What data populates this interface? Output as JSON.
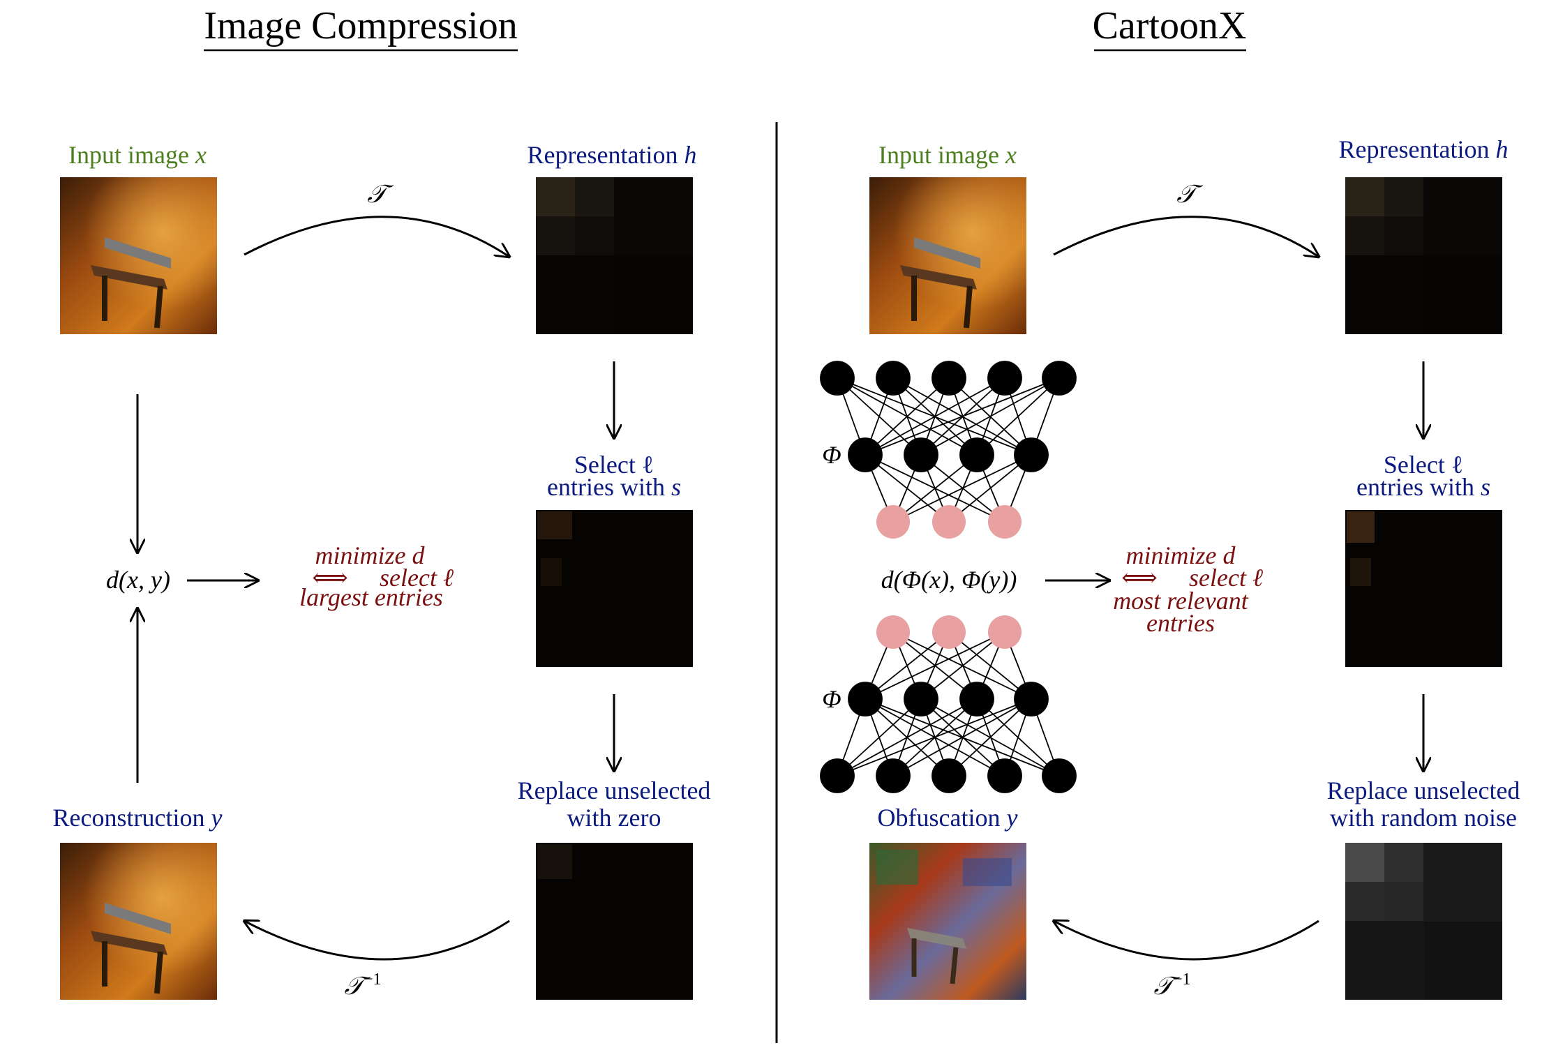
{
  "left_panel": {
    "title": "Image Compression",
    "input_label": "Input image",
    "input_var": "x",
    "representation_label": "Representation",
    "representation_var": "h",
    "transform": "𝒯",
    "inverse_transform": "𝒯",
    "inverse_sup": "−1",
    "select_line1": "Select ℓ",
    "select_line2": "entries with",
    "select_var": "s",
    "replace_line1": "Replace unselected",
    "replace_line2": "with zero",
    "reconstruction_label": "Reconstruction",
    "reconstruction_var": "y",
    "distance": "d(x, y)",
    "objective_line1": "minimize d",
    "objective_line2": "select ℓ",
    "objective_line3": "largest entries",
    "equivalence": "⟺"
  },
  "right_panel": {
    "title": "CartoonX",
    "input_label": "Input image",
    "input_var": "x",
    "representation_label": "Representation",
    "representation_var": "h",
    "transform": "𝒯",
    "inverse_transform": "𝒯",
    "inverse_sup": "−1",
    "select_line1": "Select ℓ",
    "select_line2": "entries with",
    "select_var": "s",
    "replace_line1": "Replace unselected",
    "replace_line2": "with random noise",
    "obfuscation_label": "Obfuscation",
    "obfuscation_var": "y",
    "network_symbol_top": "Φ",
    "network_symbol_bottom": "Φ",
    "distance": "d(Φ(x), Φ(y))",
    "objective_line1": "minimize d",
    "objective_line2": "select ℓ",
    "objective_line3": "most relevant",
    "objective_line4": "entries",
    "equivalence": "⟺"
  },
  "colors": {
    "input_label": "#4c7f1f",
    "step_label": "#0b1a80",
    "objective": "#7a1010",
    "neuron": "#000000",
    "latent_neuron": "#e8a0a0"
  }
}
